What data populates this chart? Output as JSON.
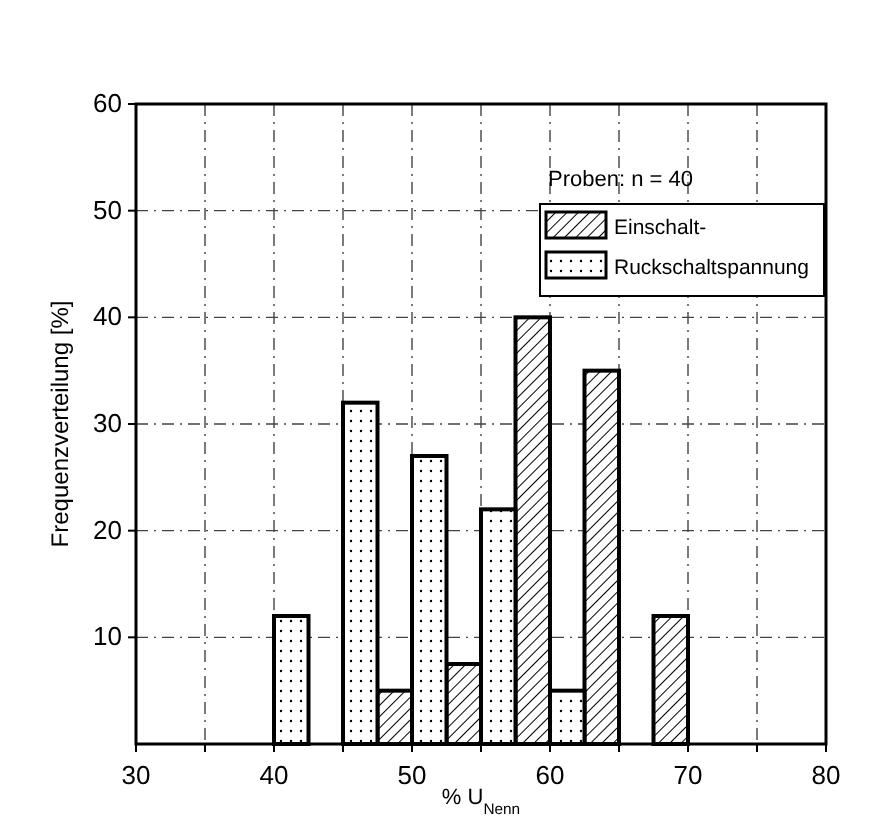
{
  "chart_data": {
    "type": "bar",
    "xlabel": "% U$_{Nenn}$",
    "ylabel": "Frequenzverteilung [%]",
    "xlim": [
      30,
      80
    ],
    "xticks": [
      30,
      {
        "value": 35,
        "label": null
      },
      40,
      {
        "value": 45,
        "label": null
      },
      50,
      {
        "value": 55,
        "label": null
      },
      60,
      {
        "value": 65,
        "label": null
      },
      70,
      {
        "value": 75,
        "label": null
      },
      80
    ],
    "ylim": [
      0,
      60
    ],
    "yticks": [
      10,
      20,
      30,
      40,
      50,
      60
    ],
    "grid": true,
    "legend": "top right",
    "annotations": [
      "Proben: n = 40"
    ],
    "series": [
      {
        "name": "Einschalt-",
        "color": "#000000",
        "x": [
          48.75,
          53.75,
          58.75,
          63.75,
          68.75
        ],
        "values": [
          5,
          7.5,
          40,
          35,
          12
        ]
      },
      {
        "name": "Ruckschaltspannung",
        "color": "#000000",
        "x": [
          41.25,
          46.25,
          51.25,
          56.25,
          61.25
        ],
        "values": [
          12,
          32,
          27,
          22,
          5
        ]
      }
    ]
  }
}
